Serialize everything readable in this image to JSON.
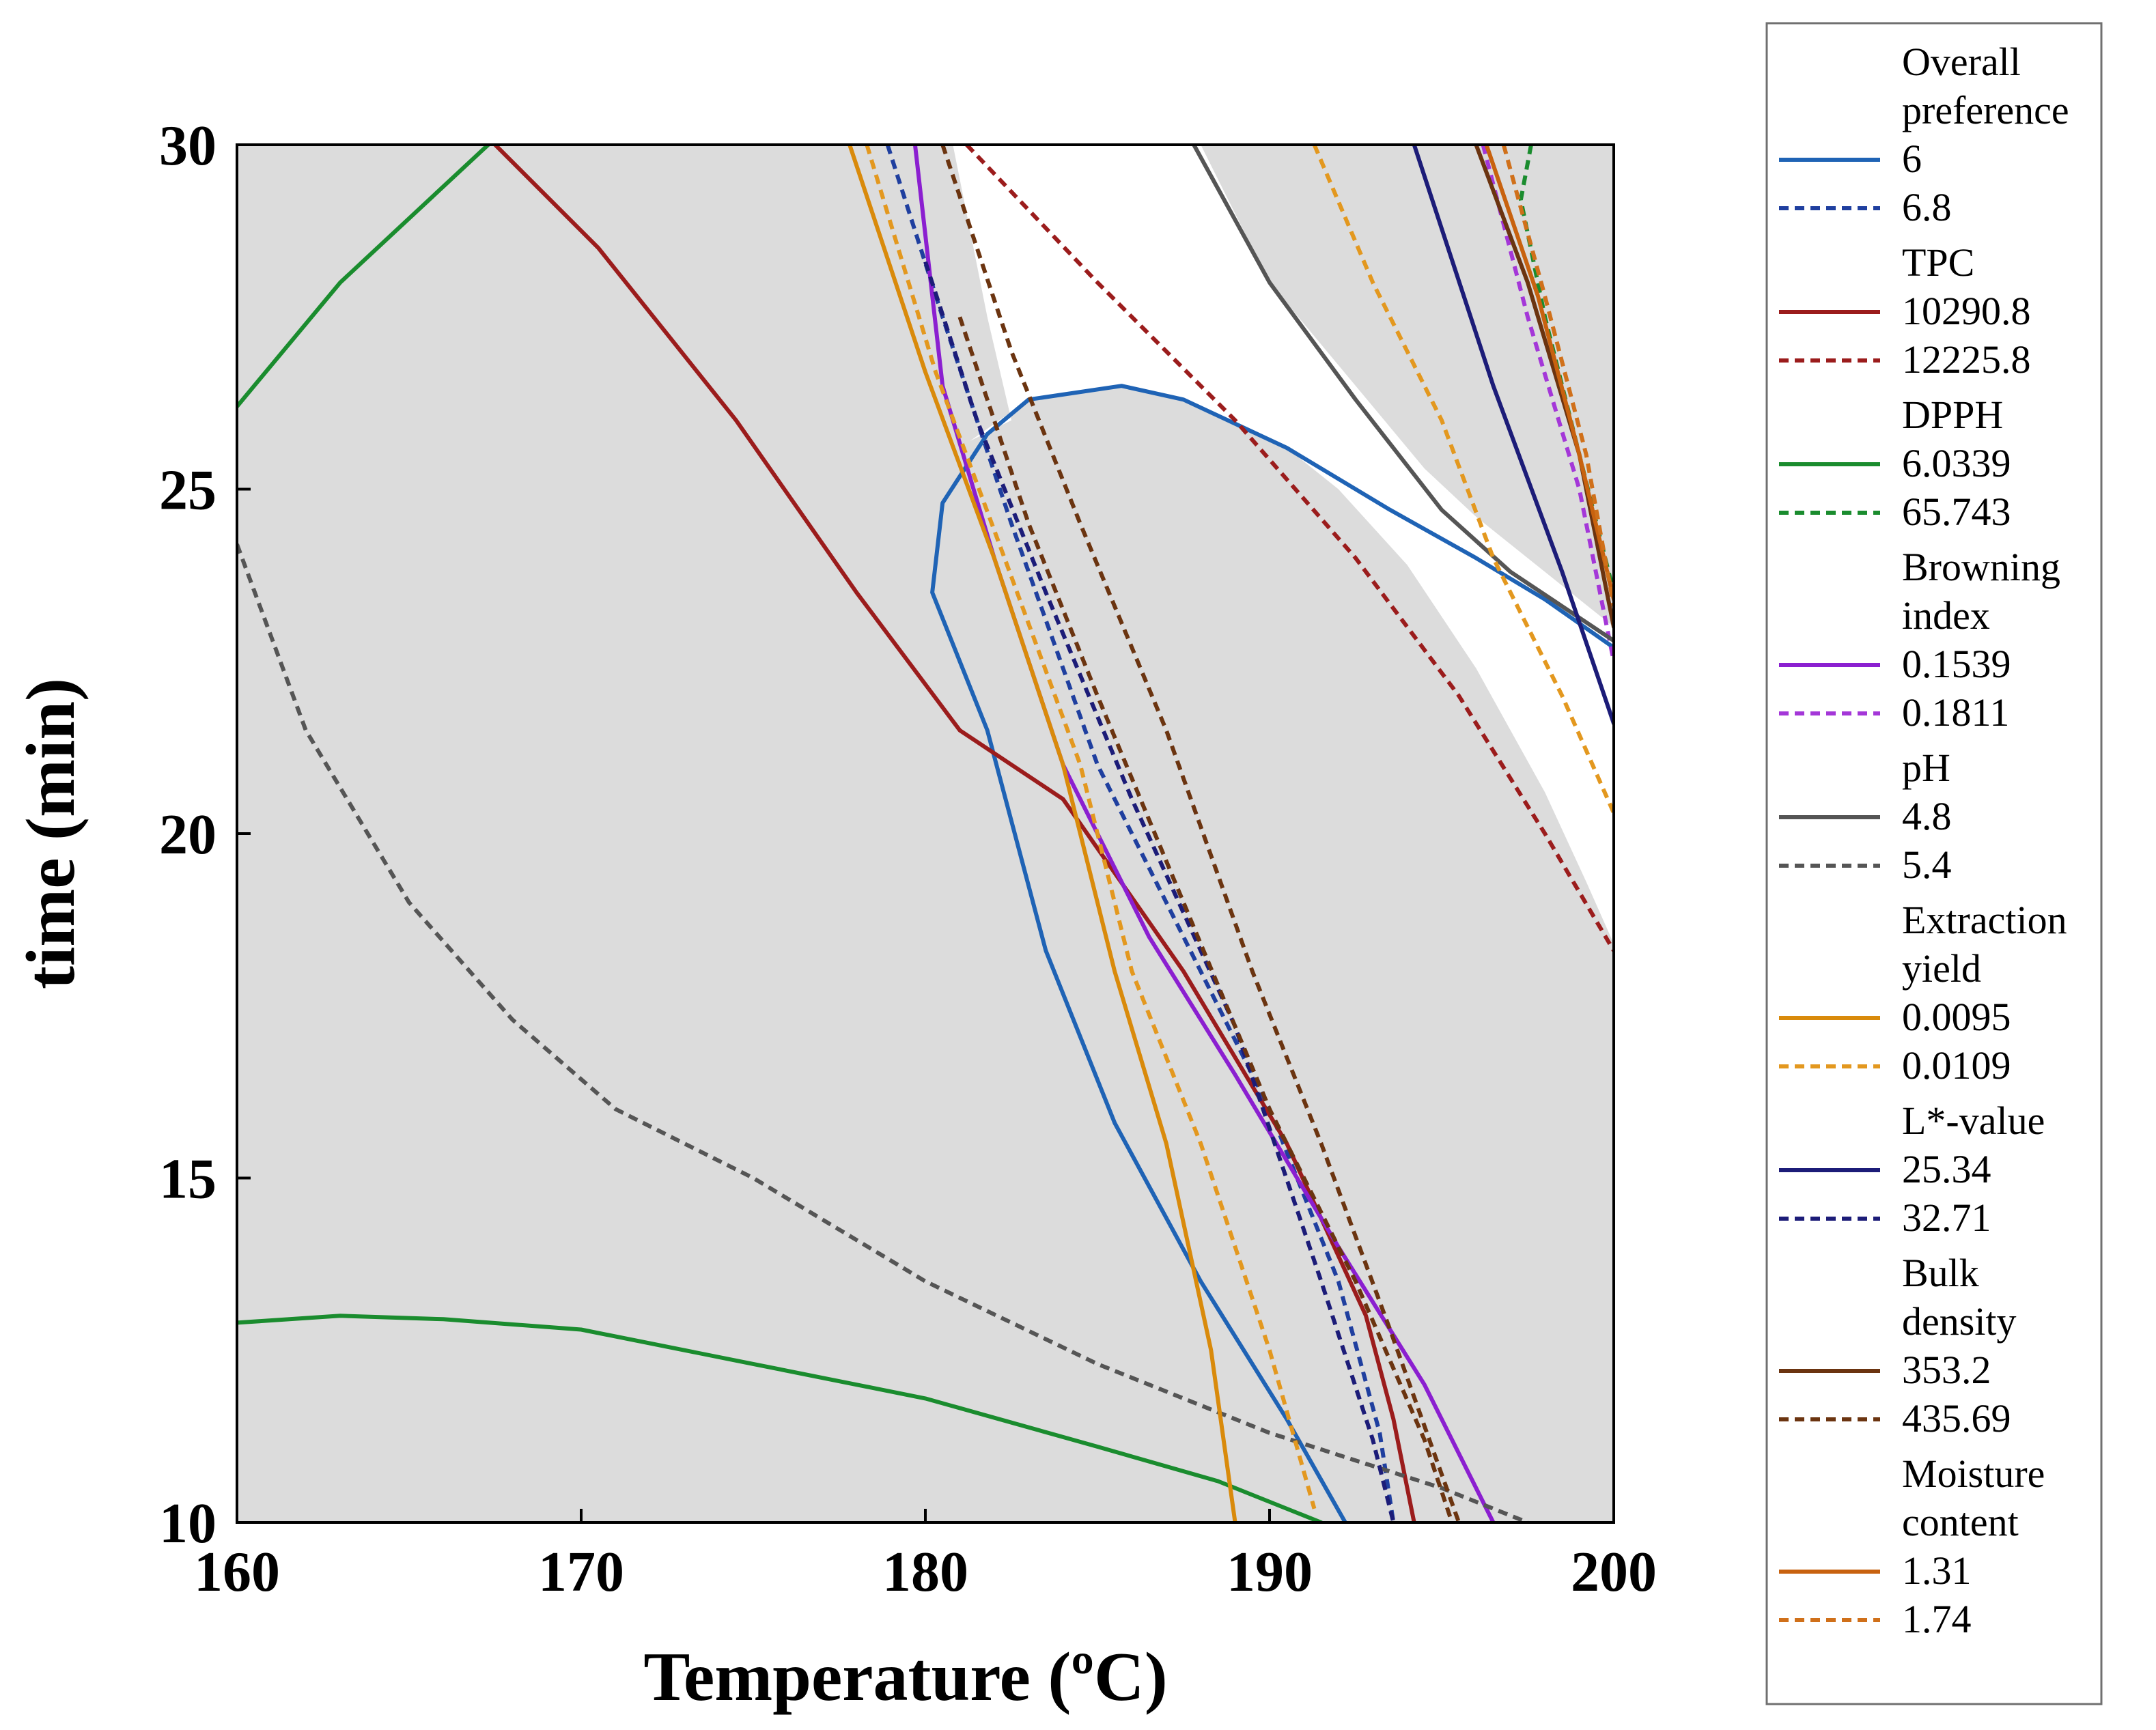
{
  "chart_data": {
    "type": "line",
    "title": "",
    "xlabel": "Temperature (ºC)",
    "ylabel": "time (min)",
    "xlim": [
      160,
      200
    ],
    "ylim": [
      10,
      30
    ],
    "xticks": [
      "160",
      "170",
      "180",
      "190",
      "200"
    ],
    "yticks": [
      "10",
      "15",
      "20",
      "25",
      "30"
    ],
    "overlay_color": "#dcdcdc",
    "feasible_color": "#ffffff",
    "feasible_region": [
      [
        181.3,
        25.7
      ],
      [
        183,
        26.3
      ],
      [
        185.7,
        26.5
      ],
      [
        187.5,
        26.3
      ],
      [
        190.5,
        25.6
      ],
      [
        192,
        25
      ],
      [
        194,
        23.9
      ],
      [
        196,
        22.4
      ],
      [
        198,
        20.6
      ],
      [
        199.2,
        19.3
      ],
      [
        200,
        18.4
      ],
      [
        200,
        23
      ],
      [
        196,
        24.6
      ],
      [
        194.5,
        25.3
      ],
      [
        193,
        26.2
      ],
      [
        190,
        28
      ],
      [
        188,
        30
      ],
      [
        180.8,
        30
      ],
      [
        181.8,
        27.5
      ],
      [
        182.5,
        26
      ]
    ],
    "series": [
      {
        "group": "Overall preference",
        "name": "6",
        "style": "solid",
        "color": "#1f63b5",
        "points": [
          [
            192.2,
            10
          ],
          [
            190.5,
            11.5
          ],
          [
            188,
            13.5
          ],
          [
            185.5,
            15.8
          ],
          [
            183.5,
            18.3
          ],
          [
            181.8,
            21.5
          ],
          [
            180.2,
            23.5
          ],
          [
            180.5,
            24.8
          ],
          [
            181.8,
            25.8
          ],
          [
            183,
            26.3
          ],
          [
            185.7,
            26.5
          ],
          [
            187.5,
            26.3
          ],
          [
            190.5,
            25.6
          ],
          [
            193.5,
            24.7
          ],
          [
            196,
            24
          ],
          [
            198,
            23.4
          ],
          [
            200,
            22.7
          ]
        ]
      },
      {
        "group": "Overall preference",
        "name": "6.8",
        "style": "dashed",
        "color": "#1f3f9f",
        "points": [
          [
            178.9,
            30
          ],
          [
            180.5,
            27.5
          ],
          [
            182.5,
            24.5
          ],
          [
            185,
            21
          ],
          [
            187.5,
            18.5
          ],
          [
            190,
            16
          ],
          [
            192,
            13.5
          ],
          [
            193.2,
            11.3
          ],
          [
            193.6,
            10
          ]
        ]
      },
      {
        "group": "TPC",
        "name": "10290.8",
        "style": "solid",
        "color": "#9b1c1c",
        "points": [
          [
            167.5,
            30
          ],
          [
            170.5,
            28.5
          ],
          [
            174.5,
            26
          ],
          [
            178,
            23.5
          ],
          [
            181,
            21.5
          ],
          [
            184,
            20.5
          ],
          [
            187.5,
            18
          ],
          [
            190.5,
            15.5
          ],
          [
            192.8,
            13
          ],
          [
            193.6,
            11.5
          ],
          [
            194.2,
            10
          ]
        ]
      },
      {
        "group": "TPC",
        "name": "12225.8",
        "style": "dashed",
        "color": "#9b1c1c",
        "points": [
          [
            181.2,
            30
          ],
          [
            185,
            28
          ],
          [
            189,
            26
          ],
          [
            192.5,
            24
          ],
          [
            195.5,
            22
          ],
          [
            198,
            20
          ],
          [
            200,
            18.3
          ]
        ]
      },
      {
        "group": "DPPH",
        "name": "6.0339",
        "style": "solid",
        "color": "#1a8c2e",
        "segments": [
          [
            [
              160,
              26.2
            ],
            [
              163,
              28
            ],
            [
              167.3,
              30
            ]
          ],
          [
            [
              160,
              12.9
            ],
            [
              163,
              13
            ],
            [
              166,
              12.95
            ],
            [
              170,
              12.8
            ],
            [
              175,
              12.3
            ],
            [
              180,
              11.8
            ],
            [
              185,
              11.1
            ],
            [
              188.5,
              10.6
            ],
            [
              191.5,
              10
            ]
          ]
        ]
      },
      {
        "group": "DPPH",
        "name": "65.743",
        "style": "dashed",
        "color": "#1a8c2e",
        "points": [
          [
            197.6,
            30
          ],
          [
            197.3,
            29.2
          ],
          [
            198,
            27.5
          ],
          [
            199,
            25.5
          ],
          [
            200,
            23.5
          ]
        ]
      },
      {
        "group": "Browning index",
        "name": "0.1539",
        "style": "solid",
        "color": "#8b1fd0",
        "points": [
          [
            179.7,
            30
          ],
          [
            180.5,
            26.5
          ],
          [
            182,
            24
          ],
          [
            184,
            21
          ],
          [
            186.5,
            18.5
          ],
          [
            189,
            16.5
          ],
          [
            192,
            14
          ],
          [
            194.5,
            12
          ],
          [
            196.5,
            10
          ]
        ]
      },
      {
        "group": "Browning index",
        "name": "0.1811",
        "style": "dashed",
        "color": "#a437d8",
        "points": [
          [
            196.2,
            30
          ],
          [
            197.5,
            27.5
          ],
          [
            199,
            25
          ],
          [
            200,
            22.5
          ]
        ]
      },
      {
        "group": "pH",
        "name": "4.8",
        "style": "solid",
        "color": "#555555",
        "points": [
          [
            187.8,
            30
          ],
          [
            190,
            28
          ],
          [
            192.5,
            26.3
          ],
          [
            195,
            24.7
          ],
          [
            197,
            23.8
          ],
          [
            200,
            22.8
          ]
        ]
      },
      {
        "group": "pH",
        "name": "5.4",
        "style": "dashed",
        "color": "#555555",
        "points": [
          [
            160,
            24.2
          ],
          [
            162,
            21.5
          ],
          [
            165,
            19
          ],
          [
            168,
            17.3
          ],
          [
            171,
            16
          ],
          [
            175,
            15
          ],
          [
            180,
            13.5
          ],
          [
            185,
            12.3
          ],
          [
            190,
            11.3
          ],
          [
            195,
            10.5
          ],
          [
            197.5,
            10
          ]
        ]
      },
      {
        "group": "Extraction yield",
        "name": "0.0095",
        "style": "solid",
        "color": "#d98a0b",
        "points": [
          [
            177.8,
            30
          ],
          [
            180,
            26.7
          ],
          [
            182,
            24
          ],
          [
            184,
            21
          ],
          [
            185.5,
            18
          ],
          [
            187,
            15.5
          ],
          [
            188.3,
            12.5
          ],
          [
            189,
            10
          ]
        ]
      },
      {
        "group": "Extraction yield",
        "name": "0.0109",
        "style": "dashed",
        "color": "#e3981f",
        "segments": [
          [
            [
              178.3,
              30
            ],
            [
              180.3,
              26.7
            ],
            [
              182.3,
              24
            ],
            [
              184.5,
              21
            ],
            [
              186,
              18
            ],
            [
              188,
              15.5
            ],
            [
              190,
              12.5
            ],
            [
              191.3,
              10.2
            ]
          ],
          [
            [
              191.3,
              30
            ],
            [
              193,
              28
            ],
            [
              195,
              26
            ],
            [
              196.5,
              24
            ],
            [
              198.5,
              22
            ],
            [
              200,
              20.3
            ]
          ]
        ]
      },
      {
        "group": "L*-value",
        "name": "25.34",
        "style": "solid",
        "color": "#1c1c78",
        "points": [
          [
            194.2,
            30
          ],
          [
            196.5,
            26.5
          ],
          [
            198.5,
            23.8
          ],
          [
            200,
            21.6
          ]
        ]
      },
      {
        "group": "L*-value",
        "name": "32.71",
        "style": "dashed",
        "color": "#1c1c78",
        "points": [
          [
            180,
            28.3
          ],
          [
            181.5,
            26
          ],
          [
            183.5,
            23.5
          ],
          [
            186,
            20.5
          ],
          [
            189,
            17.2
          ],
          [
            191.5,
            13.5
          ],
          [
            193,
            11.2
          ],
          [
            193.6,
            10
          ]
        ]
      },
      {
        "group": "Bulk density",
        "name": "353.2",
        "style": "solid",
        "color": "#6b3410",
        "points": [
          [
            196,
            30
          ],
          [
            197.5,
            28
          ],
          [
            199,
            25.5
          ],
          [
            200,
            23
          ]
        ]
      },
      {
        "group": "Bulk density",
        "name": "435.69",
        "style": "dashed",
        "color": "#6b3410",
        "segments": [
          [
            [
              180.5,
              30
            ],
            [
              182.5,
              27
            ],
            [
              184.5,
              24.5
            ],
            [
              187,
              21.5
            ],
            [
              189.5,
              18
            ],
            [
              191.5,
              15.5
            ],
            [
              193.5,
              12.8
            ],
            [
              195.5,
              10
            ]
          ],
          [
            [
              181,
              27.5
            ],
            [
              183,
              24.5
            ],
            [
              185,
              22
            ],
            [
              187.5,
              19
            ],
            [
              190,
              16
            ],
            [
              192.5,
              13.5
            ],
            [
              194.5,
              11.2
            ],
            [
              195.3,
              10
            ]
          ]
        ]
      },
      {
        "group": "Moisture content",
        "name": "1.31",
        "style": "solid",
        "color": "#c8620f",
        "points": [
          [
            196.3,
            30
          ],
          [
            197.8,
            27.8
          ],
          [
            199,
            25.5
          ],
          [
            200,
            23.4
          ]
        ]
      },
      {
        "group": "Moisture content",
        "name": "1.74",
        "style": "dashed",
        "color": "#d0701a",
        "points": [
          [
            196.8,
            30
          ],
          [
            198,
            27.8
          ],
          [
            199.2,
            25.5
          ],
          [
            200,
            23.3
          ]
        ]
      }
    ],
    "legend": {
      "placement": "right",
      "groups": [
        {
          "label_lines": [
            "Overall",
            "preference"
          ],
          "entries": [
            {
              "value": "6",
              "style": "solid",
              "color": "#1f63b5"
            },
            {
              "value": "6.8",
              "style": "dashed",
              "color": "#1f3f9f"
            }
          ]
        },
        {
          "label_lines": [
            "TPC"
          ],
          "entries": [
            {
              "value": "10290.8",
              "style": "solid",
              "color": "#9b1c1c"
            },
            {
              "value": "12225.8",
              "style": "dashed",
              "color": "#9b1c1c"
            }
          ]
        },
        {
          "label_lines": [
            "DPPH"
          ],
          "entries": [
            {
              "value": "6.0339",
              "style": "solid",
              "color": "#1a8c2e"
            },
            {
              "value": "65.743",
              "style": "dashed",
              "color": "#1a8c2e"
            }
          ]
        },
        {
          "label_lines": [
            "Browning",
            "index"
          ],
          "entries": [
            {
              "value": "0.1539",
              "style": "solid",
              "color": "#8b1fd0"
            },
            {
              "value": "0.1811",
              "style": "dashed",
              "color": "#a437d8"
            }
          ]
        },
        {
          "label_lines": [
            "pH"
          ],
          "entries": [
            {
              "value": "4.8",
              "style": "solid",
              "color": "#555555"
            },
            {
              "value": "5.4",
              "style": "dashed",
              "color": "#555555"
            }
          ]
        },
        {
          "label_lines": [
            "Extraction",
            "yield"
          ],
          "entries": [
            {
              "value": "0.0095",
              "style": "solid",
              "color": "#d98a0b"
            },
            {
              "value": "0.0109",
              "style": "dashed",
              "color": "#e3981f"
            }
          ]
        },
        {
          "label_lines": [
            "L*-value"
          ],
          "entries": [
            {
              "value": "25.34",
              "style": "solid",
              "color": "#1c1c78"
            },
            {
              "value": "32.71",
              "style": "dashed",
              "color": "#1c1c78"
            }
          ]
        },
        {
          "label_lines": [
            "Bulk",
            "density"
          ],
          "entries": [
            {
              "value": "353.2",
              "style": "solid",
              "color": "#6b3410"
            },
            {
              "value": "435.69",
              "style": "dashed",
              "color": "#6b3410"
            }
          ]
        },
        {
          "label_lines": [
            "Moisture",
            "content"
          ],
          "entries": [
            {
              "value": "1.31",
              "style": "solid",
              "color": "#c8620f"
            },
            {
              "value": "1.74",
              "style": "dashed",
              "color": "#d0701a"
            }
          ]
        }
      ]
    }
  }
}
